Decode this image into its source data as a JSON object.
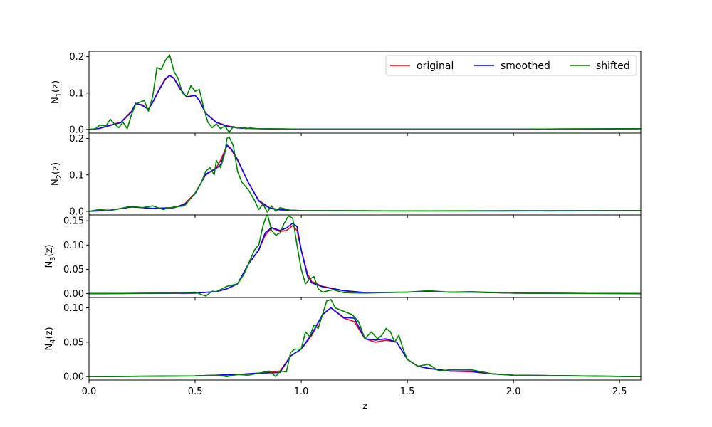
{
  "chart_data": {
    "type": "line",
    "xlabel": "z",
    "xlim": [
      0,
      2.6
    ],
    "x_ticks": [
      0.0,
      0.5,
      1.0,
      1.5,
      2.0,
      2.5
    ],
    "x_tick_labels": [
      "0.0",
      "0.5",
      "1.0",
      "1.5",
      "2.0",
      "2.5"
    ],
    "grid": false,
    "legend": {
      "placement": "top-right",
      "entries": [
        {
          "label": "original",
          "color": "#ff0000"
        },
        {
          "label": "smoothed",
          "color": "#0000ff"
        },
        {
          "label": "shifted",
          "color": "#008000"
        }
      ]
    },
    "panels": [
      {
        "ylabel": "N_1(z)",
        "ylabel_sub": "1",
        "ylim": [
          -0.01,
          0.215
        ],
        "y_ticks": [
          0.0,
          0.1,
          0.2
        ],
        "y_tick_labels": [
          "0.0",
          "0.1",
          "0.2"
        ],
        "series": [
          {
            "name": "original",
            "color": "#ff0000",
            "x": [
              0,
              0.05,
              0.1,
              0.15,
              0.2,
              0.22,
              0.25,
              0.28,
              0.3,
              0.33,
              0.36,
              0.38,
              0.4,
              0.43,
              0.46,
              0.5,
              0.52,
              0.55,
              0.6,
              0.65,
              0.7,
              0.75,
              0.8,
              1.0,
              1.5,
              2.0,
              2.6
            ],
            "y": [
              0,
              0.003,
              0.012,
              0.02,
              0.05,
              0.07,
              0.068,
              0.055,
              0.075,
              0.11,
              0.14,
              0.148,
              0.14,
              0.11,
              0.09,
              0.093,
              0.08,
              0.045,
              0.02,
              0.01,
              0.005,
              0.003,
              0.002,
              0.001,
              0.001,
              0.001,
              0.002
            ]
          },
          {
            "name": "smoothed",
            "color": "#0000ff",
            "x": [
              0,
              0.05,
              0.1,
              0.15,
              0.2,
              0.22,
              0.25,
              0.28,
              0.3,
              0.33,
              0.36,
              0.38,
              0.4,
              0.43,
              0.46,
              0.5,
              0.52,
              0.55,
              0.6,
              0.65,
              0.7,
              0.75,
              0.8,
              1.0,
              1.5,
              2.0,
              2.6
            ],
            "y": [
              0,
              0.003,
              0.011,
              0.019,
              0.048,
              0.072,
              0.066,
              0.056,
              0.074,
              0.108,
              0.138,
              0.149,
              0.141,
              0.112,
              0.089,
              0.094,
              0.079,
              0.044,
              0.019,
              0.009,
              0.004,
              0.003,
              0.002,
              0.001,
              0.001,
              0.001,
              0.002
            ]
          },
          {
            "name": "shifted",
            "color": "#008000",
            "x": [
              0,
              0.03,
              0.05,
              0.08,
              0.1,
              0.12,
              0.14,
              0.16,
              0.18,
              0.2,
              0.22,
              0.24,
              0.26,
              0.28,
              0.3,
              0.32,
              0.34,
              0.36,
              0.38,
              0.4,
              0.42,
              0.44,
              0.46,
              0.48,
              0.5,
              0.52,
              0.54,
              0.56,
              0.58,
              0.6,
              0.62,
              0.64,
              0.66,
              0.68,
              0.7,
              0.72,
              0.74,
              0.76,
              0.8,
              1.0,
              1.5,
              2.0,
              2.6
            ],
            "y": [
              0,
              0.002,
              0.012,
              0.01,
              0.028,
              0.015,
              0.005,
              0.02,
              0.002,
              0.04,
              0.07,
              0.075,
              0.08,
              0.05,
              0.09,
              0.17,
              0.165,
              0.19,
              0.205,
              0.16,
              0.14,
              0.1,
              0.092,
              0.12,
              0.105,
              0.11,
              0.06,
              0.02,
              0.005,
              0.015,
              0.002,
              0.01,
              -0.008,
              0.008,
              0.004,
              0.006,
              0.002,
              0.004,
              0.002,
              0.001,
              0.001,
              0.001,
              0.002
            ]
          }
        ]
      },
      {
        "ylabel": "N_2(z)",
        "ylabel_sub": "2",
        "ylim": [
          -0.01,
          0.215
        ],
        "y_ticks": [
          0.0,
          0.1,
          0.2
        ],
        "y_tick_labels": [
          "0.0",
          "0.1",
          "0.2"
        ],
        "series": [
          {
            "name": "original",
            "color": "#ff0000",
            "x": [
              0,
              0.1,
              0.2,
              0.3,
              0.4,
              0.45,
              0.5,
              0.55,
              0.6,
              0.62,
              0.65,
              0.67,
              0.7,
              0.75,
              0.8,
              0.85,
              0.9,
              1.0,
              1.5,
              2.0,
              2.6
            ],
            "y": [
              0,
              0.003,
              0.012,
              0.008,
              0.01,
              0.02,
              0.05,
              0.1,
              0.12,
              0.14,
              0.18,
              0.17,
              0.14,
              0.08,
              0.03,
              0.01,
              0.004,
              0.002,
              0.001,
              0.001,
              0.002
            ]
          },
          {
            "name": "smoothed",
            "color": "#0000ff",
            "x": [
              0,
              0.1,
              0.2,
              0.3,
              0.4,
              0.45,
              0.5,
              0.55,
              0.6,
              0.62,
              0.65,
              0.67,
              0.7,
              0.75,
              0.8,
              0.85,
              0.9,
              1.0,
              1.5,
              2.0,
              2.6
            ],
            "y": [
              0,
              0.003,
              0.012,
              0.008,
              0.01,
              0.019,
              0.048,
              0.102,
              0.118,
              0.128,
              0.182,
              0.172,
              0.142,
              0.08,
              0.028,
              0.009,
              0.004,
              0.002,
              0.001,
              0.001,
              0.002
            ]
          },
          {
            "name": "shifted",
            "color": "#008000",
            "x": [
              0,
              0.05,
              0.1,
              0.15,
              0.2,
              0.25,
              0.3,
              0.35,
              0.4,
              0.45,
              0.5,
              0.53,
              0.55,
              0.57,
              0.59,
              0.6,
              0.62,
              0.64,
              0.65,
              0.66,
              0.68,
              0.7,
              0.72,
              0.75,
              0.78,
              0.8,
              0.82,
              0.84,
              0.86,
              0.88,
              0.9,
              0.95,
              1.0,
              1.5,
              2.0,
              2.6
            ],
            "y": [
              0,
              0.005,
              0.002,
              0.008,
              0.014,
              0.01,
              0.015,
              0.005,
              0.012,
              0.015,
              0.05,
              0.08,
              0.11,
              0.12,
              0.1,
              0.14,
              0.12,
              0.16,
              0.2,
              0.205,
              0.18,
              0.11,
              0.08,
              0.06,
              0.03,
              0.005,
              0.02,
              -0.002,
              0.015,
              0.0,
              0.01,
              0.003,
              0.002,
              0.001,
              0.002,
              0.002
            ]
          }
        ]
      },
      {
        "ylabel": "N_3(z)",
        "ylabel_sub": "3",
        "ylim": [
          -0.008,
          0.162
        ],
        "y_ticks": [
          0.0,
          0.05,
          0.1,
          0.15
        ],
        "y_tick_labels": [
          "0.00",
          "0.05",
          "0.10",
          "0.15"
        ],
        "series": [
          {
            "name": "original",
            "color": "#ff0000",
            "x": [
              0,
              0.5,
              0.6,
              0.65,
              0.7,
              0.75,
              0.8,
              0.83,
              0.86,
              0.9,
              0.93,
              0.96,
              0.98,
              1.0,
              1.03,
              1.05,
              1.1,
              1.2,
              1.3,
              1.5,
              1.6,
              1.7,
              1.8,
              2.0,
              2.6
            ],
            "y": [
              0,
              0.001,
              0.004,
              0.01,
              0.02,
              0.06,
              0.09,
              0.12,
              0.135,
              0.128,
              0.13,
              0.14,
              0.13,
              0.09,
              0.04,
              0.025,
              0.015,
              0.006,
              0.002,
              0.003,
              0.005,
              0.003,
              0.003,
              0.001,
              0.0
            ]
          },
          {
            "name": "smoothed",
            "color": "#0000ff",
            "x": [
              0,
              0.5,
              0.6,
              0.65,
              0.7,
              0.75,
              0.8,
              0.83,
              0.86,
              0.9,
              0.93,
              0.96,
              0.98,
              1.0,
              1.03,
              1.05,
              1.1,
              1.2,
              1.3,
              1.5,
              1.6,
              1.7,
              1.8,
              2.0,
              2.6
            ],
            "y": [
              0,
              0.001,
              0.004,
              0.01,
              0.02,
              0.06,
              0.09,
              0.125,
              0.136,
              0.13,
              0.135,
              0.145,
              0.138,
              0.09,
              0.035,
              0.022,
              0.014,
              0.006,
              0.002,
              0.003,
              0.005,
              0.003,
              0.003,
              0.001,
              0.0
            ]
          },
          {
            "name": "shifted",
            "color": "#008000",
            "x": [
              0,
              0.4,
              0.5,
              0.55,
              0.58,
              0.6,
              0.65,
              0.7,
              0.73,
              0.75,
              0.78,
              0.8,
              0.82,
              0.84,
              0.86,
              0.88,
              0.9,
              0.92,
              0.94,
              0.96,
              0.98,
              1.0,
              1.02,
              1.04,
              1.06,
              1.08,
              1.1,
              1.15,
              1.2,
              1.3,
              1.5,
              1.6,
              1.7,
              1.8,
              2.0,
              2.6
            ],
            "y": [
              0,
              0.001,
              0.003,
              -0.005,
              0.005,
              0.004,
              0.015,
              0.02,
              0.04,
              0.06,
              0.09,
              0.1,
              0.14,
              0.165,
              0.13,
              0.12,
              0.125,
              0.145,
              0.16,
              0.155,
              0.1,
              0.05,
              0.02,
              0.03,
              0.035,
              0.01,
              0.003,
              0.008,
              0.002,
              0.001,
              0.003,
              0.006,
              0.003,
              0.004,
              0.001,
              0.0
            ]
          }
        ]
      },
      {
        "ylabel": "N_4(z)",
        "ylabel_sub": "4",
        "ylim": [
          -0.005,
          0.115
        ],
        "y_ticks": [
          0.0,
          0.05,
          0.1
        ],
        "y_tick_labels": [
          "0.00",
          "0.05",
          "0.10"
        ],
        "series": [
          {
            "name": "original",
            "color": "#ff0000",
            "x": [
              0,
              0.5,
              0.7,
              0.8,
              0.9,
              0.95,
              1.0,
              1.05,
              1.1,
              1.14,
              1.2,
              1.25,
              1.3,
              1.35,
              1.4,
              1.45,
              1.5,
              1.55,
              1.6,
              1.7,
              1.8,
              1.9,
              2.0,
              2.6
            ],
            "y": [
              0,
              0.001,
              0.003,
              0.005,
              0.008,
              0.03,
              0.04,
              0.06,
              0.09,
              0.1,
              0.085,
              0.08,
              0.055,
              0.05,
              0.053,
              0.05,
              0.025,
              0.015,
              0.012,
              0.008,
              0.007,
              0.004,
              0.002,
              0.0
            ]
          },
          {
            "name": "smoothed",
            "color": "#0000ff",
            "x": [
              0,
              0.5,
              0.7,
              0.8,
              0.9,
              0.95,
              1.0,
              1.05,
              1.1,
              1.14,
              1.2,
              1.25,
              1.3,
              1.35,
              1.4,
              1.45,
              1.5,
              1.55,
              1.6,
              1.7,
              1.8,
              1.9,
              2.0,
              2.6
            ],
            "y": [
              0,
              0.001,
              0.003,
              0.005,
              0.006,
              0.03,
              0.04,
              0.062,
              0.09,
              0.1,
              0.086,
              0.085,
              0.055,
              0.053,
              0.055,
              0.05,
              0.025,
              0.015,
              0.012,
              0.008,
              0.008,
              0.004,
              0.002,
              0.0
            ]
          },
          {
            "name": "shifted",
            "color": "#008000",
            "x": [
              0,
              0.5,
              0.6,
              0.65,
              0.7,
              0.75,
              0.8,
              0.85,
              0.88,
              0.9,
              0.93,
              0.95,
              0.97,
              1.0,
              1.02,
              1.04,
              1.06,
              1.08,
              1.1,
              1.12,
              1.14,
              1.16,
              1.2,
              1.24,
              1.27,
              1.3,
              1.33,
              1.36,
              1.38,
              1.4,
              1.42,
              1.44,
              1.46,
              1.48,
              1.5,
              1.55,
              1.6,
              1.65,
              1.7,
              1.8,
              1.9,
              2.0,
              2.6
            ],
            "y": [
              0,
              0.001,
              0.002,
              0.0,
              0.003,
              0.002,
              0.005,
              0.008,
              0.0,
              0.008,
              0.007,
              0.035,
              0.04,
              0.04,
              0.065,
              0.058,
              0.075,
              0.07,
              0.09,
              0.11,
              0.112,
              0.1,
              0.095,
              0.09,
              0.08,
              0.055,
              0.065,
              0.055,
              0.06,
              0.07,
              0.065,
              0.05,
              0.06,
              0.04,
              0.025,
              0.015,
              0.018,
              0.008,
              0.01,
              0.01,
              0.004,
              0.002,
              0.0
            ]
          }
        ]
      }
    ]
  }
}
